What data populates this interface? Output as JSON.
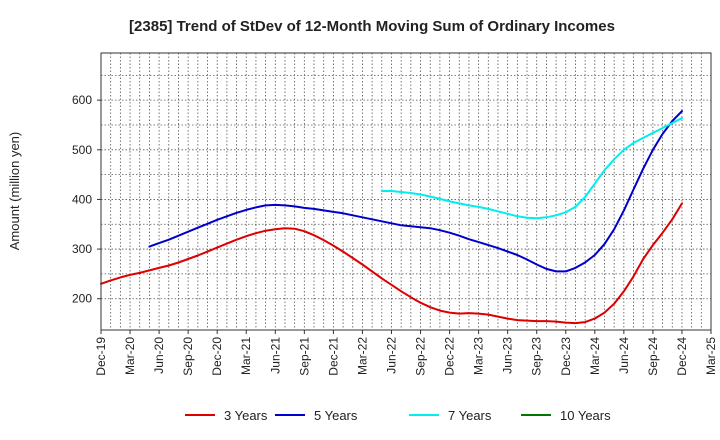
{
  "chart_data": {
    "type": "line",
    "title": "[2385]  Trend of StDev of 12-Month Moving Sum of Ordinary Incomes",
    "xlabel": "",
    "ylabel": "Amount (million yen)",
    "ylim": [
      137,
      695
    ],
    "yticks": [
      200,
      300,
      400,
      500,
      600
    ],
    "categories": [
      "Dec-19",
      "Mar-20",
      "Jun-20",
      "Sep-20",
      "Dec-20",
      "Mar-21",
      "Jun-21",
      "Sep-21",
      "Dec-21",
      "Mar-22",
      "Jun-22",
      "Sep-22",
      "Dec-22",
      "Mar-23",
      "Jun-23",
      "Sep-23",
      "Dec-23",
      "Mar-24",
      "Jun-24",
      "Sep-24",
      "Dec-24",
      "Mar-25"
    ],
    "x_unit": "month index (0 = Dec-19)",
    "grid": true,
    "legend_position": "bottom",
    "series": [
      {
        "name": "3 Years",
        "color": "#dd0000",
        "x": [
          0,
          1,
          2,
          3,
          4,
          5,
          6,
          7,
          8,
          9,
          10,
          11,
          12,
          13,
          14,
          15,
          16,
          17,
          18,
          19,
          20,
          21,
          22,
          23,
          24,
          25,
          26,
          27,
          28,
          29,
          30,
          31,
          32,
          33,
          34,
          35,
          36,
          37,
          38,
          39,
          40,
          41,
          42,
          43,
          44,
          45,
          46,
          47,
          48,
          49,
          50,
          51,
          52,
          53,
          54,
          55,
          56,
          57,
          58,
          59,
          60
        ],
        "values": [
          230,
          237,
          243,
          248,
          252,
          257,
          262,
          267,
          273,
          280,
          287,
          295,
          303,
          311,
          319,
          326,
          332,
          337,
          340,
          342,
          341,
          336,
          328,
          318,
          307,
          295,
          282,
          269,
          255,
          241,
          228,
          215,
          203,
          192,
          183,
          176,
          172,
          170,
          171,
          170,
          168,
          164,
          160,
          157,
          156,
          155,
          155,
          154,
          152,
          151,
          153,
          160,
          172,
          190,
          215,
          245,
          280,
          308,
          333,
          360,
          392
        ]
      },
      {
        "name": "5 Years",
        "color": "#0000cc",
        "x": [
          5,
          6,
          7,
          8,
          9,
          10,
          11,
          12,
          13,
          14,
          15,
          16,
          17,
          18,
          19,
          20,
          21,
          22,
          23,
          24,
          25,
          26,
          27,
          28,
          29,
          30,
          31,
          32,
          33,
          34,
          35,
          36,
          37,
          38,
          39,
          40,
          41,
          42,
          43,
          44,
          45,
          46,
          47,
          48,
          49,
          50,
          51,
          52,
          53,
          54,
          55,
          56,
          57,
          58,
          59,
          60
        ],
        "values": [
          305,
          312,
          319,
          327,
          335,
          343,
          351,
          359,
          366,
          373,
          379,
          384,
          388,
          389,
          388,
          386,
          383,
          381,
          378,
          375,
          372,
          368,
          364,
          360,
          356,
          352,
          348,
          346,
          344,
          342,
          338,
          333,
          327,
          320,
          314,
          308,
          302,
          295,
          288,
          279,
          269,
          260,
          255,
          255,
          262,
          273,
          288,
          310,
          340,
          378,
          420,
          462,
          500,
          532,
          558,
          578
        ]
      },
      {
        "name": "7 Years",
        "color": "#00eeee",
        "x": [
          29,
          30,
          31,
          32,
          33,
          34,
          35,
          36,
          37,
          38,
          39,
          40,
          41,
          42,
          43,
          44,
          45,
          46,
          47,
          48,
          49,
          50,
          51,
          52,
          53,
          54,
          55,
          56,
          57,
          58,
          59,
          60
        ],
        "values": [
          417,
          417,
          415,
          413,
          410,
          406,
          401,
          396,
          392,
          388,
          385,
          381,
          376,
          371,
          366,
          363,
          362,
          364,
          368,
          374,
          385,
          405,
          432,
          459,
          481,
          500,
          514,
          524,
          534,
          544,
          554,
          564
        ]
      },
      {
        "name": "10 Years",
        "color": "#007700",
        "x": [],
        "values": []
      }
    ]
  }
}
